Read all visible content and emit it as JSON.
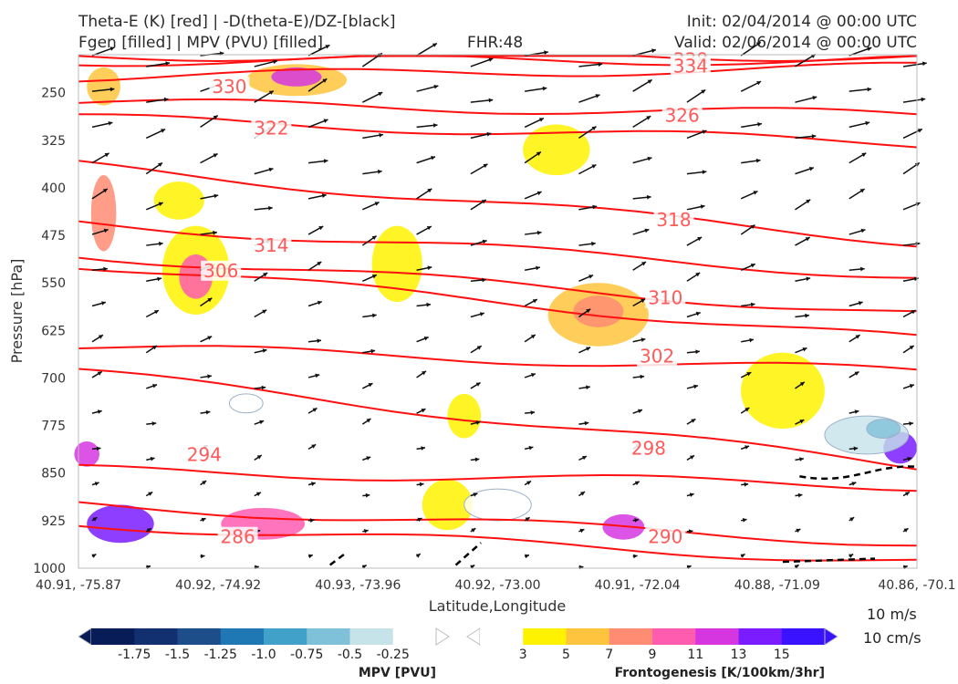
{
  "header": {
    "title_line1": "Theta-E (K) [red] | -D(theta-E)/DZ-[black]",
    "title_line2": "Fgen [filled] | MPV (PVU) [filled]",
    "fhr": "FHR:48",
    "init": "Init: 02/04/2014 @ 00:00 UTC",
    "valid": "Valid: 02/06/2014 @ 00:00 UTC"
  },
  "chart_data": {
    "type": "cross-section",
    "xlabel": "Latitude,Longitude",
    "ylabel": "Pressure [hPa]",
    "x_ticks": [
      "40.91, -75.87",
      "40.92, -74.92",
      "40.93, -73.96",
      "40.92, -73.00",
      "40.91, -72.04",
      "40.88, -71.09",
      "40.86, -70.1"
    ],
    "y_ticks": [
      250,
      325,
      400,
      475,
      550,
      625,
      700,
      775,
      850,
      925,
      1000
    ],
    "ylim": [
      190,
      1000
    ],
    "theta_e_contours": [
      {
        "value": 338,
        "label_pos": {
          "x": 0.73,
          "p": 202
        },
        "left_p": 192,
        "right_p": 192
      },
      {
        "value": 334,
        "label_pos": {
          "x": 0.73,
          "p": 212
        },
        "left_p": 200,
        "right_p": 198
      },
      {
        "value": 330,
        "label_pos": {
          "x": 0.18,
          "p": 245
        },
        "left_p": 225,
        "right_p": 210
      },
      {
        "value": 326,
        "label_pos": {
          "x": 0.72,
          "p": 290
        },
        "left_p": 265,
        "right_p": 285
      },
      {
        "value": 322,
        "label_pos": {
          "x": 0.23,
          "p": 310
        },
        "left_p": 290,
        "right_p": 330
      },
      {
        "value": 318,
        "label_pos": {
          "x": 0.71,
          "p": 455
        },
        "left_p": 365,
        "right_p": 485
      },
      {
        "value": 314,
        "label_pos": {
          "x": 0.23,
          "p": 495
        },
        "left_p": 455,
        "right_p": 540
      },
      {
        "value": 310,
        "label_pos": {
          "x": 0.7,
          "p": 578
        },
        "left_p": 505,
        "right_p": 600
      },
      {
        "value": 306,
        "label_pos": {
          "x": 0.17,
          "p": 535
        },
        "left_p": 520,
        "right_p": 640
      },
      {
        "value": 302,
        "label_pos": {
          "x": 0.69,
          "p": 670
        },
        "left_p": 650,
        "right_p": 690
      },
      {
        "value": 298,
        "label_pos": {
          "x": 0.68,
          "p": 815
        },
        "left_p": 690,
        "right_p": 840
      },
      {
        "value": 294,
        "label_pos": {
          "x": 0.15,
          "p": 825
        },
        "left_p": 845,
        "right_p": 870
      },
      {
        "value": 290,
        "label_pos": {
          "x": 0.7,
          "p": 955
        },
        "left_p": 900,
        "right_p": 960
      },
      {
        "value": 286,
        "label_pos": {
          "x": 0.19,
          "p": 955
        },
        "left_p": 930,
        "right_p": 990
      }
    ],
    "mpv_colorbar": {
      "title": "MPV [PVU]",
      "ticks": [
        "-1.75",
        "-1.5",
        "-1.25",
        "-1.0",
        "-0.75",
        "-0.5",
        "-0.25"
      ],
      "colors": [
        "#081d58",
        "#12306f",
        "#1d4e8a",
        "#1f78b4",
        "#41a1c8",
        "#7fc1d8",
        "#c6e3ea",
        "#ffffff"
      ]
    },
    "fgen_colorbar": {
      "title": "Frontogenesis [K/100km/3hr]",
      "ticks": [
        "3",
        "5",
        "7",
        "9",
        "11",
        "13",
        "15"
      ],
      "colors": [
        "#ffffff",
        "#fff200",
        "#ffc43d",
        "#ff8c73",
        "#ff5cb0",
        "#d636e0",
        "#7a1cff",
        "#3a12ff"
      ]
    },
    "vector_reference": {
      "line1": "10 m/s",
      "line2": "10 cm/s"
    }
  }
}
